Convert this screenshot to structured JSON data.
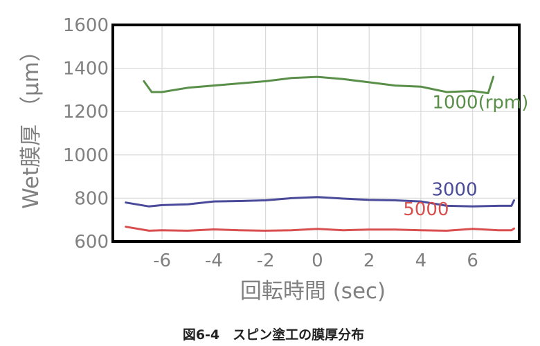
{
  "caption": "図6-4　スピン塗工の膜厚分布",
  "chart_data": {
    "type": "line",
    "title": "",
    "xlabel": "回転時間 (sec)",
    "ylabel": "Wet膜厚 （μm）",
    "xlim": [
      -7.9,
      7.8
    ],
    "ylim": [
      600,
      1600
    ],
    "xticks": [
      -6,
      -4,
      -2,
      0,
      2,
      4,
      6
    ],
    "xtick_labels": [
      "-6",
      "-4",
      "-2",
      "0",
      "2",
      "4",
      "6"
    ],
    "yticks": [
      600,
      800,
      1000,
      1200,
      1400,
      1600
    ],
    "ytick_labels": [
      "600",
      "800",
      "1000",
      "1200",
      "1400",
      "1600"
    ],
    "grid": true,
    "legend": "none",
    "series": [
      {
        "name": "1000(rpm)",
        "color": "#5a8f4a",
        "x": [
          -6.7,
          -6.4,
          -6.0,
          -5.0,
          -4.0,
          -3.0,
          -2.0,
          -1.0,
          0.0,
          1.0,
          2.0,
          3.0,
          4.0,
          5.0,
          6.0,
          6.6,
          6.8
        ],
        "y": [
          1340,
          1290,
          1290,
          1310,
          1320,
          1330,
          1340,
          1355,
          1360,
          1350,
          1335,
          1320,
          1315,
          1290,
          1295,
          1285,
          1360
        ]
      },
      {
        "name": "3000",
        "color": "#4a4a9a",
        "x": [
          -7.4,
          -6.5,
          -6.0,
          -5.0,
          -4.0,
          -3.0,
          -2.0,
          -1.0,
          0.0,
          1.0,
          2.0,
          3.0,
          4.0,
          5.0,
          6.0,
          7.0,
          7.5,
          7.6
        ],
        "y": [
          780,
          762,
          768,
          772,
          785,
          787,
          790,
          800,
          805,
          798,
          792,
          790,
          785,
          765,
          762,
          765,
          765,
          790
        ]
      },
      {
        "name": "5000",
        "color": "#d94f4f",
        "x": [
          -7.4,
          -6.5,
          -6.0,
          -5.0,
          -4.0,
          -3.0,
          -2.0,
          -1.0,
          0.0,
          1.0,
          2.0,
          3.0,
          4.0,
          5.0,
          6.0,
          7.0,
          7.5,
          7.6
        ],
        "y": [
          668,
          650,
          652,
          650,
          656,
          652,
          650,
          652,
          658,
          652,
          655,
          655,
          652,
          650,
          658,
          652,
          652,
          660
        ]
      }
    ]
  }
}
